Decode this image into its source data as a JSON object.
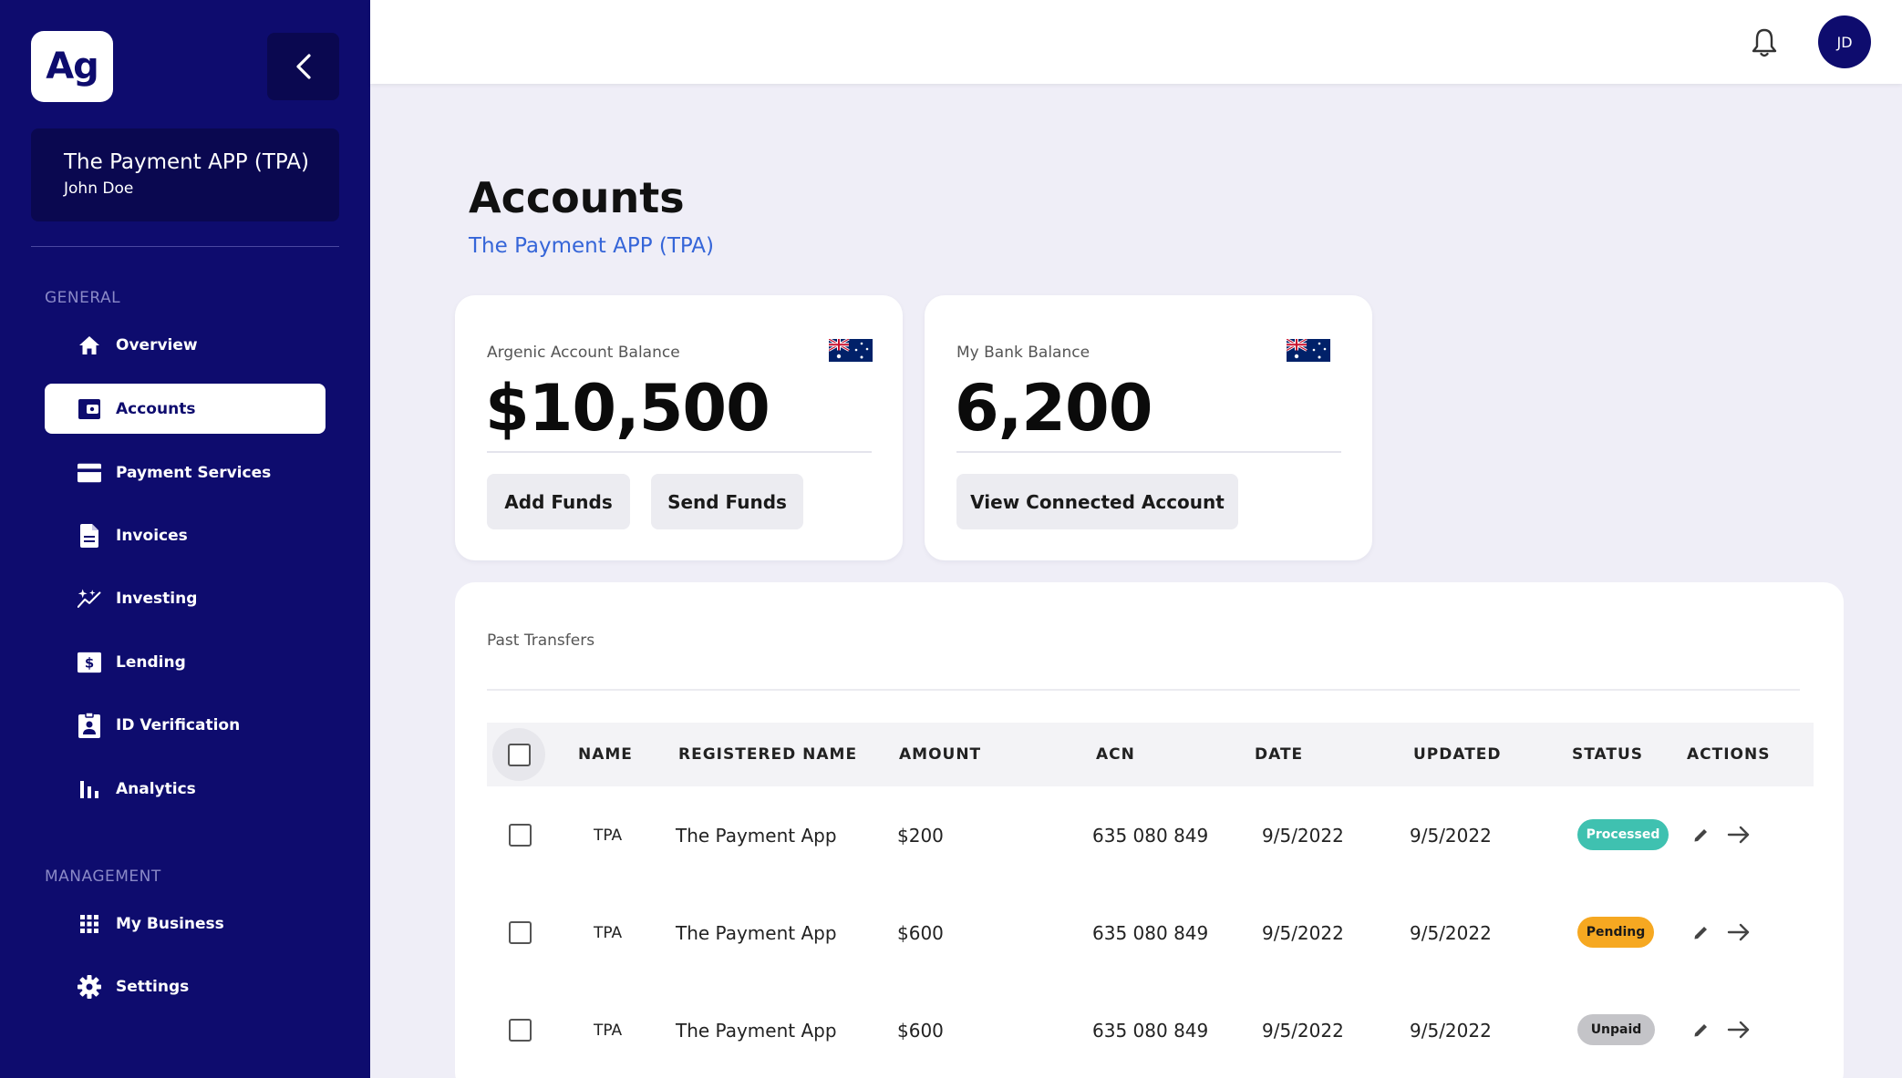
{
  "app": {
    "logo_text": "Ag",
    "org_name": "The Payment APP (TPA)",
    "user_name": "John Doe",
    "avatar_initials": "JD"
  },
  "sidebar": {
    "general_label": "GENERAL",
    "management_label": "MANAGEMENT",
    "items": [
      {
        "label": "Overview",
        "icon": "home-icon"
      },
      {
        "label": "Accounts",
        "icon": "wallet-icon",
        "active": true
      },
      {
        "label": "Payment Services",
        "icon": "credit-card-icon"
      },
      {
        "label": "Invoices",
        "icon": "document-icon"
      },
      {
        "label": "Investing",
        "icon": "sparkle-chart-icon"
      },
      {
        "label": "Lending",
        "icon": "dollar-icon"
      },
      {
        "label": "ID Verification",
        "icon": "id-badge-icon"
      },
      {
        "label": "Analytics",
        "icon": "bar-chart-icon"
      }
    ],
    "management_items": [
      {
        "label": "My Business",
        "icon": "grid-icon"
      },
      {
        "label": "Settings",
        "icon": "gear-icon"
      }
    ]
  },
  "page": {
    "title": "Accounts",
    "subtitle": "The Payment APP (TPA)"
  },
  "cards": {
    "argenic": {
      "label": "Argenic Account Balance",
      "value": "$10,500",
      "flag": "australia-flag-icon",
      "add_funds": "Add Funds",
      "send_funds": "Send Funds"
    },
    "bank": {
      "label": "My Bank Balance",
      "value": "6,200",
      "flag": "australia-flag-icon",
      "view_connected": "View Connected Account"
    }
  },
  "transfers": {
    "title": "Past Transfers",
    "columns": [
      "NAME",
      "REGISTERED NAME",
      "AMOUNT",
      "ACN",
      "DATE",
      "UPDATED",
      "STATUS",
      "ACTIONS"
    ],
    "rows": [
      {
        "name": "TPA",
        "registered_name": "The Payment App",
        "amount": "$200",
        "acn": "635 080 849",
        "date": "9/5/2022",
        "updated": "9/5/2022",
        "status": "Processed"
      },
      {
        "name": "TPA",
        "registered_name": "The Payment App",
        "amount": "$600",
        "acn": "635 080 849",
        "date": "9/5/2022",
        "updated": "9/5/2022",
        "status": "Pending"
      },
      {
        "name": "TPA",
        "registered_name": "The Payment App",
        "amount": "$600",
        "acn": "635 080 849",
        "date": "9/5/2022",
        "updated": "9/5/2022",
        "status": "Unpaid"
      }
    ]
  },
  "colors": {
    "sidebar": "#0e0c6e",
    "accent_link": "#3565d8",
    "processed": "#3fc1b0",
    "pending": "#f6a821",
    "unpaid": "#c4c4c8"
  }
}
